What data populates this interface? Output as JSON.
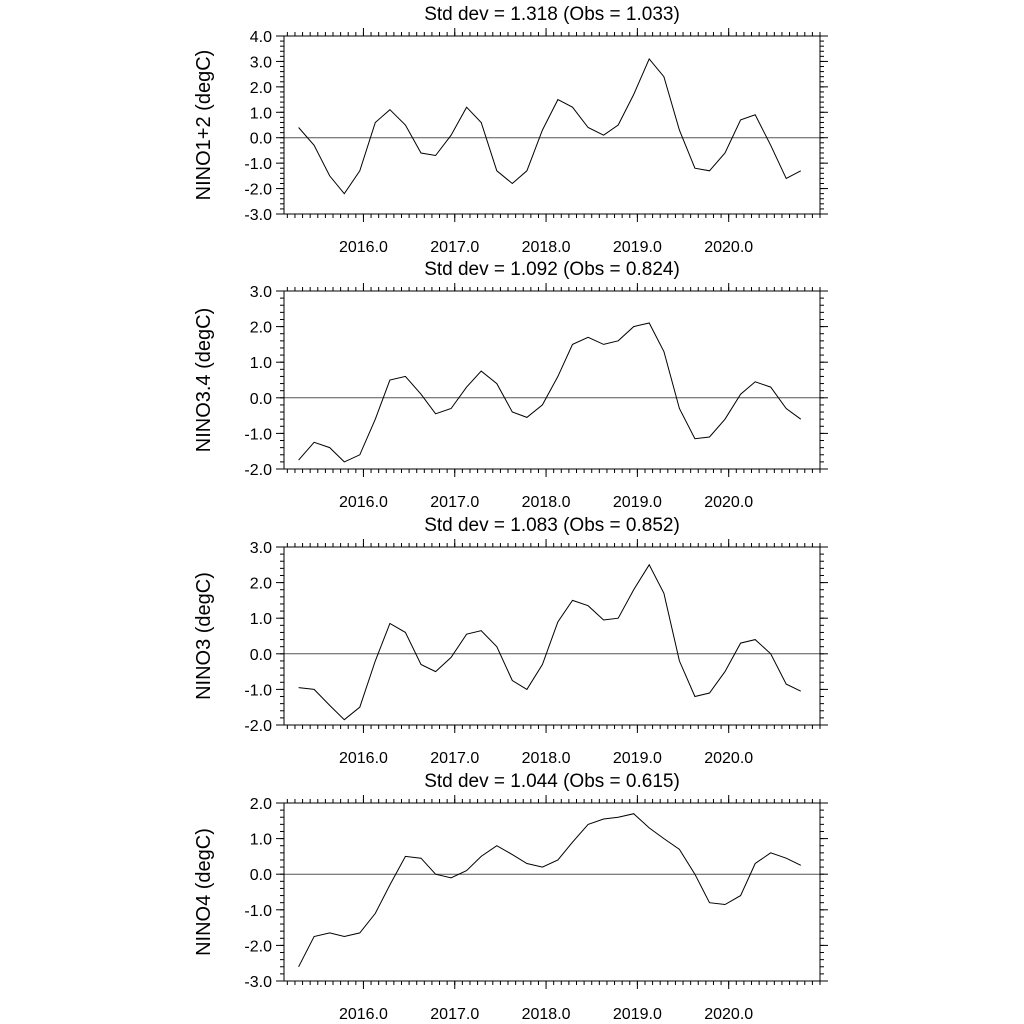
{
  "chart_data": [
    {
      "type": "line",
      "title": "Std dev = 1.318 (Obs = 1.033)",
      "y_label": "NINO1+2 (degC)",
      "x": [
        2015.29,
        2015.46,
        2015.63,
        2015.79,
        2015.96,
        2016.13,
        2016.29,
        2016.46,
        2016.63,
        2016.79,
        2016.96,
        2017.13,
        2017.29,
        2017.46,
        2017.63,
        2017.79,
        2017.96,
        2018.13,
        2018.29,
        2018.46,
        2018.63,
        2018.79,
        2018.96,
        2019.13,
        2019.29,
        2019.46,
        2019.63,
        2019.79,
        2019.96,
        2020.13,
        2020.29,
        2020.46,
        2020.63,
        2020.79
      ],
      "series": [
        {
          "color": "#000000",
          "values": [
            0.4,
            -0.3,
            -1.5,
            -2.2,
            -1.3,
            0.6,
            1.1,
            0.5,
            -0.6,
            -0.7,
            0.1,
            1.2,
            0.6,
            -1.3,
            -1.8,
            -1.3,
            0.3,
            1.5,
            1.2,
            0.4,
            0.1,
            0.5,
            1.7,
            3.1,
            2.4,
            0.3,
            -1.2,
            -1.3,
            -0.6,
            0.7,
            0.9,
            -0.3,
            -1.6,
            -1.3
          ]
        }
      ],
      "xlim": [
        2015.13,
        2021.0
      ],
      "xticks": [
        {
          "value": 2016,
          "label": "2016.0"
        },
        {
          "value": 2017,
          "label": "2017.0"
        },
        {
          "value": 2018,
          "label": "2018.0"
        },
        {
          "value": 2019,
          "label": "2019.0"
        },
        {
          "value": 2020,
          "label": "2020.0"
        }
      ],
      "ylim": [
        -3,
        4
      ],
      "yticks": [
        {
          "value": -3,
          "label": "-3.0"
        },
        {
          "value": -2,
          "label": "-2.0"
        },
        {
          "value": -1,
          "label": "-1.0"
        },
        {
          "value": 0,
          "label": "0.0"
        },
        {
          "value": 1,
          "label": "1.0"
        },
        {
          "value": 2,
          "label": "2.0"
        },
        {
          "value": 3,
          "label": "3.0"
        },
        {
          "value": 4,
          "label": "4.0"
        }
      ],
      "reference_line": 0
    },
    {
      "type": "line",
      "title": "Std dev = 1.092 (Obs = 0.824)",
      "y_label": "NINO3.4 (degC)",
      "x": [
        2015.29,
        2015.46,
        2015.63,
        2015.79,
        2015.96,
        2016.13,
        2016.29,
        2016.46,
        2016.63,
        2016.79,
        2016.96,
        2017.13,
        2017.29,
        2017.46,
        2017.63,
        2017.79,
        2017.96,
        2018.13,
        2018.29,
        2018.46,
        2018.63,
        2018.79,
        2018.96,
        2019.13,
        2019.29,
        2019.46,
        2019.63,
        2019.79,
        2019.96,
        2020.13,
        2020.29,
        2020.46,
        2020.63,
        2020.79
      ],
      "series": [
        {
          "color": "#000000",
          "values": [
            -1.75,
            -1.25,
            -1.4,
            -1.8,
            -1.6,
            -0.6,
            0.5,
            0.6,
            0.1,
            -0.45,
            -0.3,
            0.3,
            0.75,
            0.4,
            -0.4,
            -0.55,
            -0.2,
            0.6,
            1.5,
            1.7,
            1.5,
            1.6,
            2.0,
            2.1,
            1.3,
            -0.3,
            -1.15,
            -1.1,
            -0.6,
            0.1,
            0.45,
            0.3,
            -0.3,
            -0.6
          ]
        }
      ],
      "xlim": [
        2015.13,
        2021.0
      ],
      "xticks": [
        {
          "value": 2016,
          "label": "2016.0"
        },
        {
          "value": 2017,
          "label": "2017.0"
        },
        {
          "value": 2018,
          "label": "2018.0"
        },
        {
          "value": 2019,
          "label": "2019.0"
        },
        {
          "value": 2020,
          "label": "2020.0"
        }
      ],
      "ylim": [
        -2,
        3
      ],
      "yticks": [
        {
          "value": -2,
          "label": "-2.0"
        },
        {
          "value": -1,
          "label": "-1.0"
        },
        {
          "value": 0,
          "label": "0.0"
        },
        {
          "value": 1,
          "label": "1.0"
        },
        {
          "value": 2,
          "label": "2.0"
        },
        {
          "value": 3,
          "label": "3.0"
        }
      ],
      "reference_line": 0
    },
    {
      "type": "line",
      "title": "Std dev = 1.083 (Obs = 0.852)",
      "y_label": "NINO3 (degC)",
      "x": [
        2015.29,
        2015.46,
        2015.63,
        2015.79,
        2015.96,
        2016.13,
        2016.29,
        2016.46,
        2016.63,
        2016.79,
        2016.96,
        2017.13,
        2017.29,
        2017.46,
        2017.63,
        2017.79,
        2017.96,
        2018.13,
        2018.29,
        2018.46,
        2018.63,
        2018.79,
        2018.96,
        2019.13,
        2019.29,
        2019.46,
        2019.63,
        2019.79,
        2019.96,
        2020.13,
        2020.29,
        2020.46,
        2020.63,
        2020.79
      ],
      "series": [
        {
          "color": "#000000",
          "values": [
            -0.95,
            -1.0,
            -1.45,
            -1.85,
            -1.5,
            -0.2,
            0.85,
            0.6,
            -0.3,
            -0.5,
            -0.1,
            0.55,
            0.65,
            0.2,
            -0.75,
            -1.0,
            -0.3,
            0.9,
            1.5,
            1.35,
            0.95,
            1.0,
            1.8,
            2.5,
            1.7,
            -0.2,
            -1.2,
            -1.1,
            -0.5,
            0.3,
            0.4,
            0.0,
            -0.85,
            -1.05
          ]
        }
      ],
      "xlim": [
        2015.13,
        2021.0
      ],
      "xticks": [
        {
          "value": 2016,
          "label": "2016.0"
        },
        {
          "value": 2017,
          "label": "2017.0"
        },
        {
          "value": 2018,
          "label": "2018.0"
        },
        {
          "value": 2019,
          "label": "2019.0"
        },
        {
          "value": 2020,
          "label": "2020.0"
        }
      ],
      "ylim": [
        -2,
        3
      ],
      "yticks": [
        {
          "value": -2,
          "label": "-2.0"
        },
        {
          "value": -1,
          "label": "-1.0"
        },
        {
          "value": 0,
          "label": "0.0"
        },
        {
          "value": 1,
          "label": "1.0"
        },
        {
          "value": 2,
          "label": "2.0"
        },
        {
          "value": 3,
          "label": "3.0"
        }
      ],
      "reference_line": 0
    },
    {
      "type": "line",
      "title": "Std dev = 1.044 (Obs = 0.615)",
      "y_label": "NINO4 (degC)",
      "x": [
        2015.29,
        2015.46,
        2015.63,
        2015.79,
        2015.96,
        2016.13,
        2016.29,
        2016.46,
        2016.63,
        2016.79,
        2016.96,
        2017.13,
        2017.29,
        2017.46,
        2017.63,
        2017.79,
        2017.96,
        2018.13,
        2018.29,
        2018.46,
        2018.63,
        2018.79,
        2018.96,
        2019.13,
        2019.29,
        2019.46,
        2019.63,
        2019.79,
        2019.96,
        2020.13,
        2020.29,
        2020.46,
        2020.63,
        2020.79
      ],
      "series": [
        {
          "color": "#000000",
          "values": [
            -2.6,
            -1.75,
            -1.65,
            -1.75,
            -1.65,
            -1.1,
            -0.3,
            0.5,
            0.45,
            0.0,
            -0.1,
            0.1,
            0.5,
            0.8,
            0.55,
            0.3,
            0.2,
            0.4,
            0.9,
            1.4,
            1.55,
            1.6,
            1.7,
            1.3,
            1.0,
            0.7,
            0.0,
            -0.8,
            -0.85,
            -0.6,
            0.3,
            0.6,
            0.45,
            0.25
          ]
        }
      ],
      "xlim": [
        2015.13,
        2021.0
      ],
      "xticks": [
        {
          "value": 2016,
          "label": "2016.0"
        },
        {
          "value": 2017,
          "label": "2017.0"
        },
        {
          "value": 2018,
          "label": "2018.0"
        },
        {
          "value": 2019,
          "label": "2019.0"
        },
        {
          "value": 2020,
          "label": "2020.0"
        }
      ],
      "ylim": [
        -3,
        2
      ],
      "yticks": [
        {
          "value": -3,
          "label": "-3.0"
        },
        {
          "value": -2,
          "label": "-2.0"
        },
        {
          "value": -1,
          "label": "-1.0"
        },
        {
          "value": 0,
          "label": "0.0"
        },
        {
          "value": 1,
          "label": "1.0"
        },
        {
          "value": 2,
          "label": "2.0"
        }
      ],
      "reference_line": 0
    }
  ]
}
